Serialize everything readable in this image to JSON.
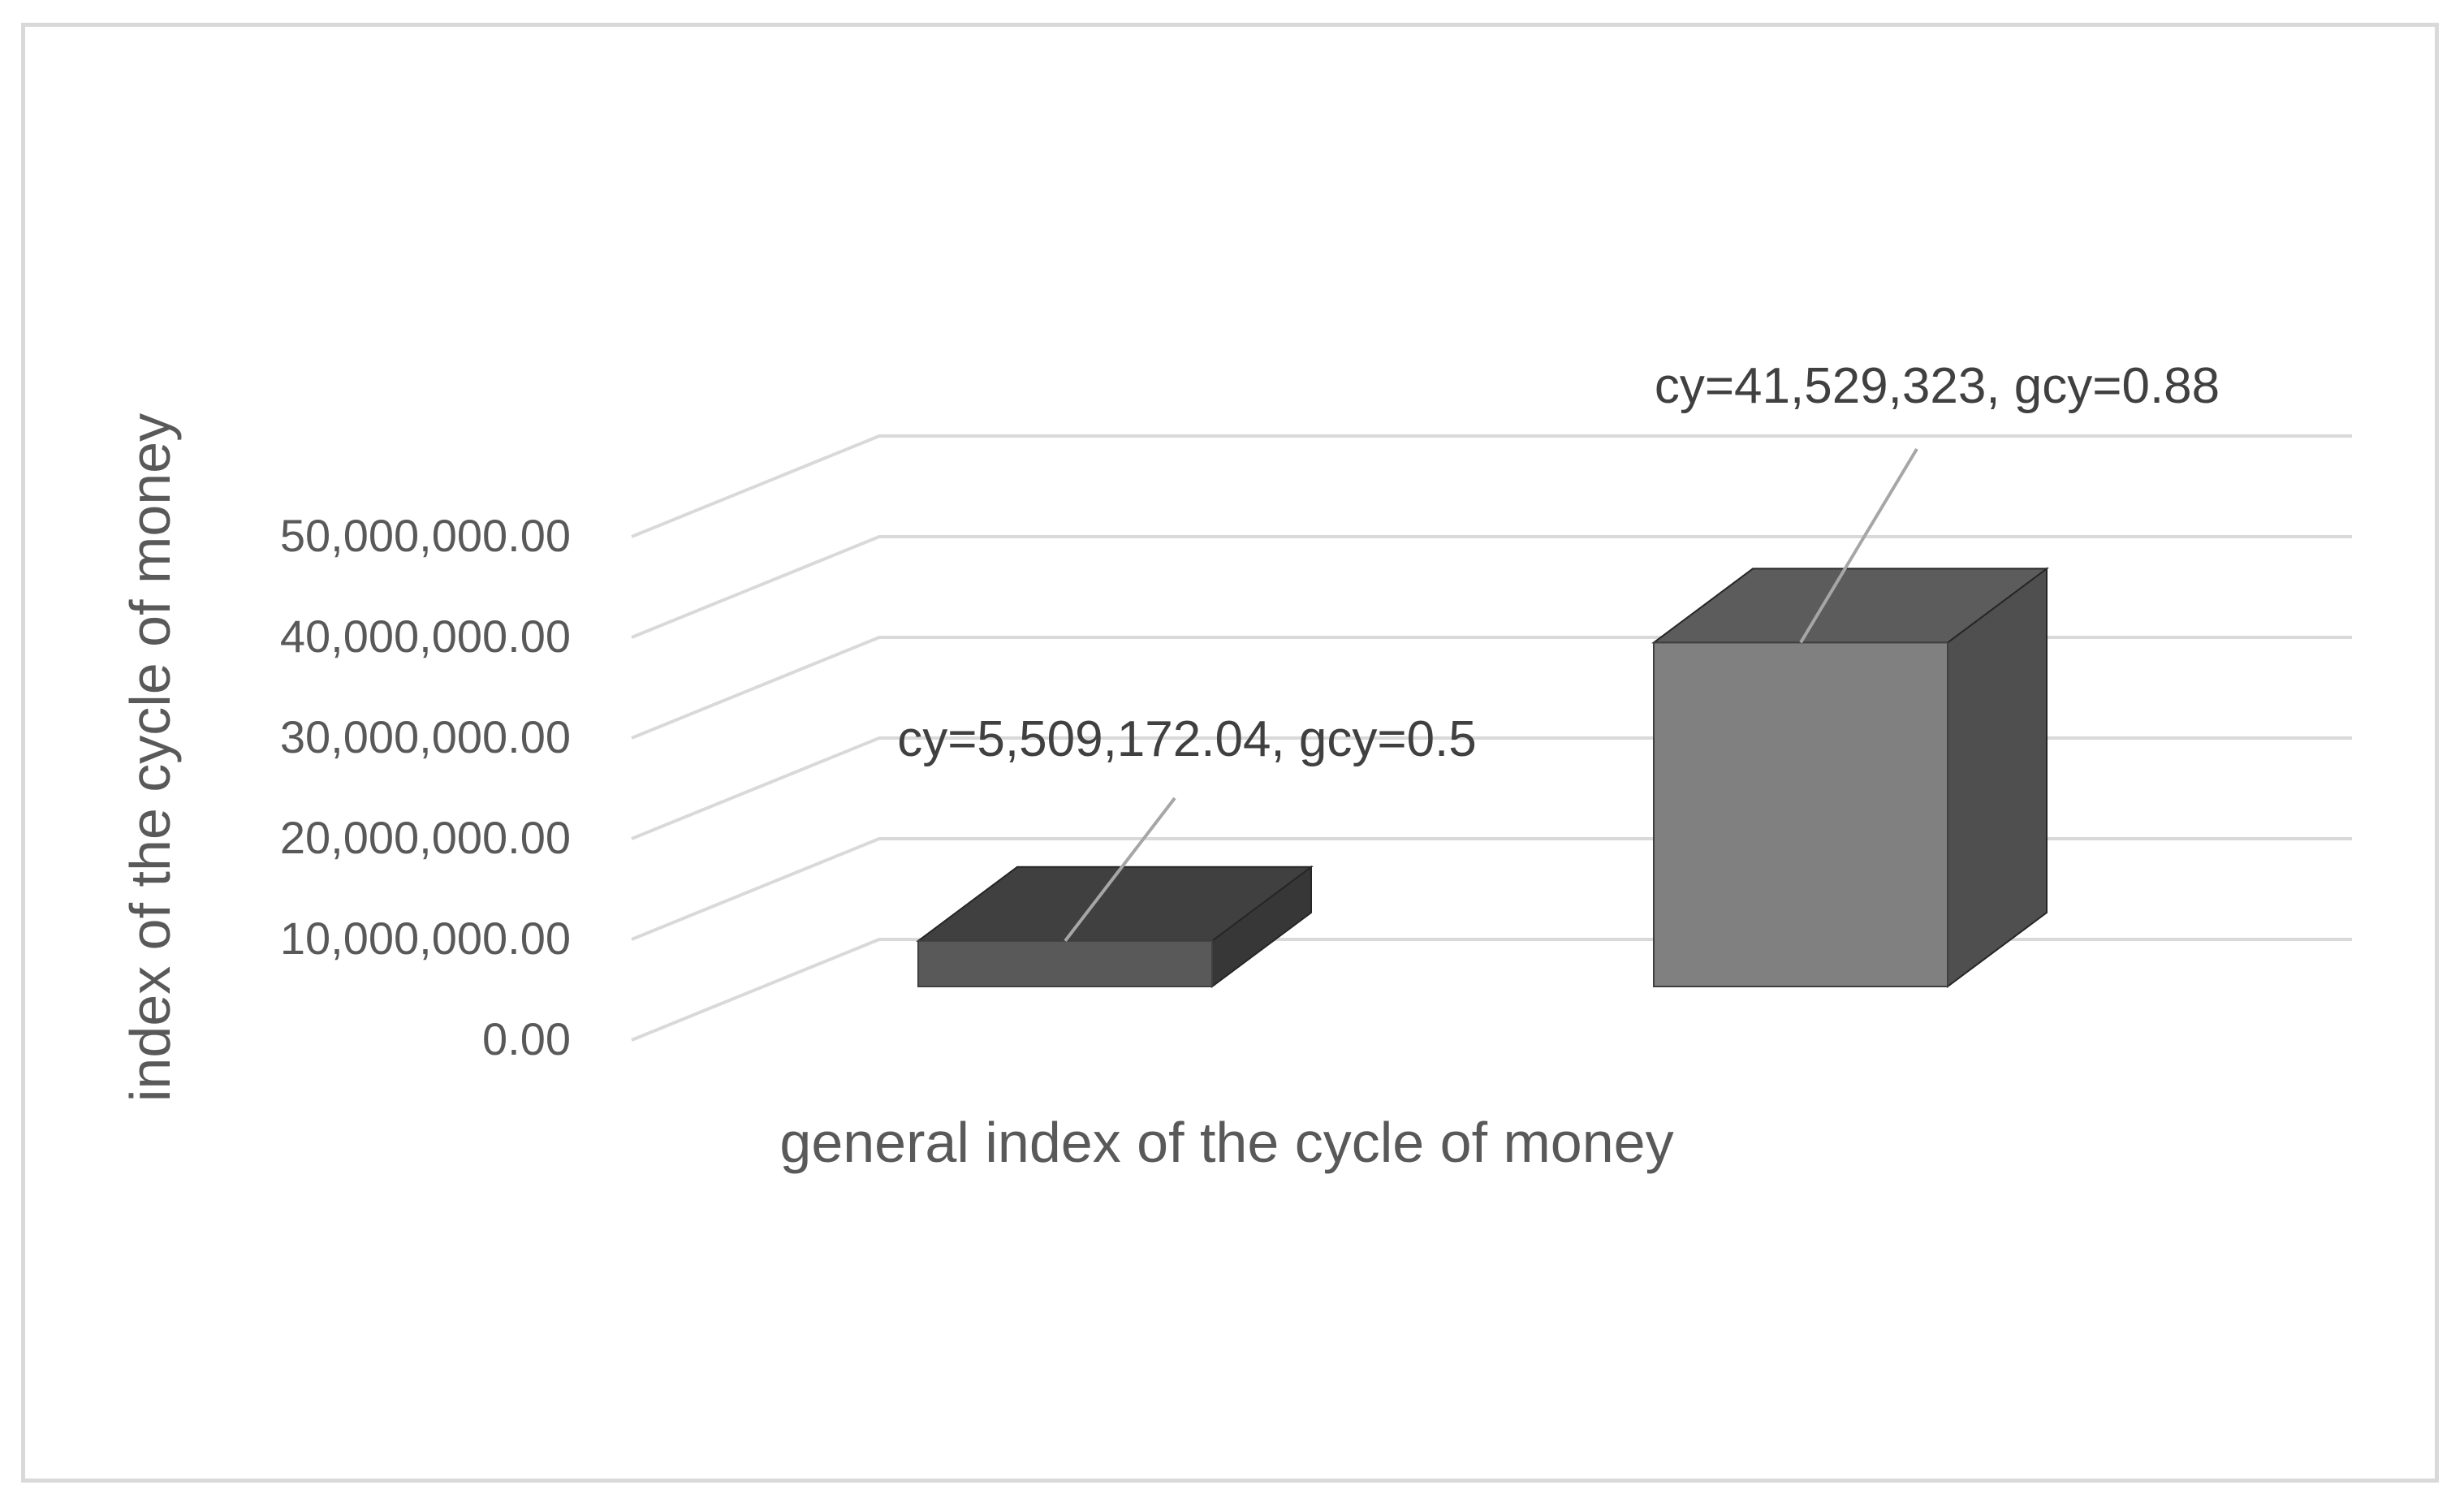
{
  "chart_data": {
    "type": "bar",
    "style": "3d-column",
    "categories": [
      ""
    ],
    "series": [
      {
        "values": [
          5509172.04
        ],
        "color": "#595959",
        "label": "cy=5,509,172.04, gcy=0.5"
      },
      {
        "values": [
          41529323
        ],
        "color": "#808080",
        "label": "cy=41,529,323, gcy=0.88"
      }
    ],
    "title": "",
    "xlabel": "general index of the cycle of money",
    "ylabel": "index of the cycle of money",
    "ylim": [
      0,
      50000000
    ],
    "yticks": [
      0,
      10000000,
      20000000,
      30000000,
      40000000,
      50000000
    ],
    "ytick_labels": [
      "0.00",
      "10,000,000.00",
      "20,000,000.00",
      "30,000,000.00",
      "40,000,000.00",
      "50,000,000.00"
    ],
    "grid": true,
    "legend": "none",
    "colors": {
      "grid": "#d9d9d9",
      "axis_text": "#595959",
      "leader": "#a6a6a6"
    }
  }
}
